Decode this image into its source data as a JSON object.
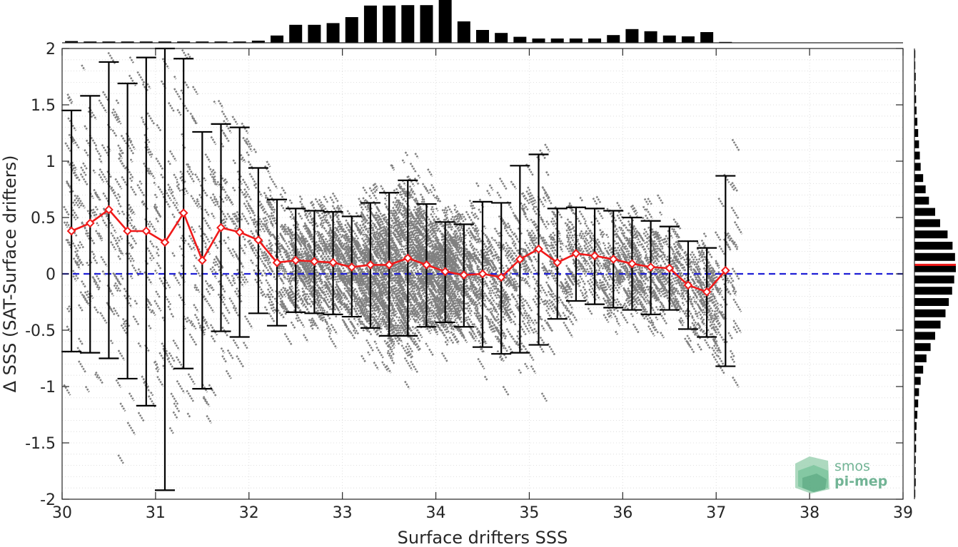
{
  "chart_data": {
    "type": "scatter",
    "xlabel": "Surface drifters SSS",
    "ylabel": "Δ SSS (SAT-Surface drifters)",
    "xlim": [
      30,
      39
    ],
    "ylim": [
      -2,
      2
    ],
    "x_ticks": [
      "30",
      "31",
      "32",
      "33",
      "34",
      "35",
      "36",
      "37",
      "38",
      "39"
    ],
    "y_ticks": [
      "2",
      "1.5",
      "1",
      "0.5",
      "0",
      "-0.5",
      "-1",
      "-1.5",
      "-2"
    ],
    "grid": "dotted",
    "zero_line": {
      "y": 0,
      "style": "dashed",
      "color": "#1f1fd6"
    },
    "colors": {
      "scatter": "#808080",
      "mean_line": "#f01a1a",
      "error_bars": "#000000",
      "histograms": "#000000",
      "axes": "#262626"
    },
    "scatter_note": "dense cloud of matchup points in gray, densest between 32 and 37",
    "binned_stats": {
      "x": [
        30.1,
        30.3,
        30.5,
        30.7,
        30.9,
        31.1,
        31.3,
        31.5,
        31.7,
        31.9,
        32.1,
        32.3,
        32.5,
        32.7,
        32.9,
        33.1,
        33.3,
        33.5,
        33.7,
        33.9,
        34.1,
        34.3,
        34.5,
        34.7,
        34.9,
        35.1,
        35.3,
        35.5,
        35.7,
        35.9,
        36.1,
        36.3,
        36.5,
        36.7,
        36.9,
        37.1
      ],
      "mean": [
        0.38,
        0.45,
        0.57,
        0.38,
        0.38,
        0.28,
        0.54,
        0.12,
        0.41,
        0.37,
        0.3,
        0.1,
        0.12,
        0.11,
        0.1,
        0.06,
        0.08,
        0.08,
        0.14,
        0.08,
        0.02,
        -0.01,
        0.0,
        -0.03,
        0.13,
        0.22,
        0.1,
        0.18,
        0.16,
        0.13,
        0.09,
        0.06,
        0.05,
        -0.1,
        -0.16,
        0.03
      ],
      "upper": [
        1.45,
        1.58,
        1.88,
        1.69,
        1.92,
        2.0,
        1.91,
        1.26,
        1.33,
        1.3,
        0.94,
        0.66,
        0.58,
        0.56,
        0.55,
        0.51,
        0.63,
        0.72,
        0.83,
        0.62,
        0.46,
        0.44,
        0.64,
        0.63,
        0.96,
        1.06,
        0.58,
        0.59,
        0.58,
        0.56,
        0.5,
        0.47,
        0.42,
        0.29,
        0.23,
        0.87
      ],
      "lower": [
        -0.69,
        -0.7,
        -0.75,
        -0.93,
        -1.17,
        -1.92,
        -0.84,
        -1.02,
        -0.51,
        -0.56,
        -0.35,
        -0.46,
        -0.34,
        -0.35,
        -0.36,
        -0.38,
        -0.48,
        -0.55,
        -0.55,
        -0.47,
        -0.43,
        -0.47,
        -0.65,
        -0.71,
        -0.7,
        -0.63,
        -0.4,
        -0.24,
        -0.27,
        -0.3,
        -0.32,
        -0.36,
        -0.32,
        -0.49,
        -0.56,
        -0.82
      ]
    },
    "top_histogram": {
      "x": [
        30.1,
        30.3,
        30.5,
        30.7,
        30.9,
        31.1,
        31.3,
        31.5,
        31.7,
        31.9,
        32.1,
        32.3,
        32.5,
        32.7,
        32.9,
        33.1,
        33.3,
        33.5,
        33.7,
        33.9,
        34.1,
        34.3,
        34.5,
        34.7,
        34.9,
        35.1,
        35.3,
        35.5,
        35.7,
        35.9,
        36.1,
        36.3,
        36.5,
        36.7,
        36.9,
        37.1
      ],
      "relative_count": [
        0.04,
        0.03,
        0.03,
        0.03,
        0.03,
        0.03,
        0.03,
        0.03,
        0.03,
        0.03,
        0.05,
        0.17,
        0.42,
        0.42,
        0.46,
        0.6,
        0.87,
        0.87,
        0.88,
        0.88,
        1.0,
        0.5,
        0.3,
        0.23,
        0.14,
        0.1,
        0.1,
        0.1,
        0.1,
        0.18,
        0.32,
        0.27,
        0.17,
        0.15,
        0.25,
        0.02
      ]
    },
    "right_histogram": {
      "y": [
        1.95,
        1.85,
        1.75,
        1.65,
        1.55,
        1.45,
        1.35,
        1.25,
        1.15,
        1.05,
        0.95,
        0.85,
        0.75,
        0.65,
        0.55,
        0.45,
        0.35,
        0.25,
        0.15,
        0.05,
        -0.05,
        -0.15,
        -0.25,
        -0.35,
        -0.45,
        -0.55,
        -0.65,
        -0.75,
        -0.85,
        -0.95,
        -1.05,
        -1.15,
        -1.25,
        -1.35,
        -1.45,
        -1.55,
        -1.65,
        -1.75,
        -1.85,
        -1.95
      ],
      "relative_count": [
        0.02,
        0.02,
        0.03,
        0.03,
        0.04,
        0.05,
        0.07,
        0.09,
        0.11,
        0.13,
        0.15,
        0.21,
        0.27,
        0.35,
        0.5,
        0.62,
        0.8,
        0.92,
        0.98,
        1.0,
        0.96,
        0.91,
        0.83,
        0.75,
        0.63,
        0.5,
        0.39,
        0.29,
        0.21,
        0.15,
        0.11,
        0.09,
        0.07,
        0.05,
        0.04,
        0.04,
        0.03,
        0.03,
        0.03,
        0.02
      ]
    },
    "right_histogram_marker": {
      "y": 0.08,
      "color": "#f01a1a"
    }
  },
  "watermark": {
    "line1": "smos",
    "line2": "pi-mep"
  }
}
